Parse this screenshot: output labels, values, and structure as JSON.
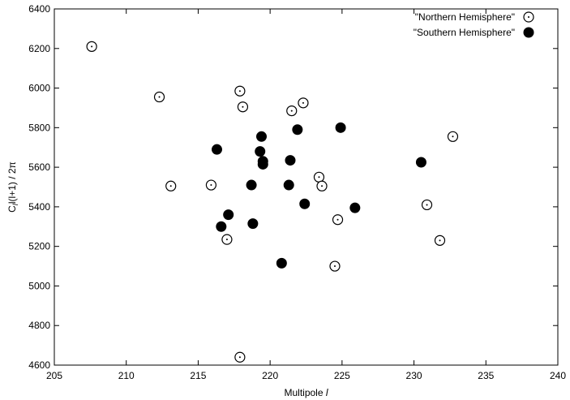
{
  "chart_data": {
    "type": "scatter",
    "xlabel": "Multipole l",
    "xlabel_parts": {
      "text": "Multipole ",
      "var": "l"
    },
    "ylabel": "C_l l(l+1) / 2π",
    "ylabel_parts": {
      "c": "C",
      "sub": "l",
      "tail": "l(l+1) / 2π"
    },
    "xlim": [
      205,
      240
    ],
    "ylim": [
      4600,
      6400
    ],
    "xticks": [
      "205",
      "210",
      "215",
      "220",
      "225",
      "230",
      "235",
      "240"
    ],
    "yticks": [
      "4600",
      "4800",
      "5000",
      "5200",
      "5400",
      "5600",
      "5800",
      "6000",
      "6200",
      "6400"
    ],
    "grid": false,
    "legend_position": "top-right",
    "series": [
      {
        "name": "\"Northern Hemisphere\"",
        "marker": "open-circle-dot",
        "x": [
          207.6,
          212.3,
          213.1,
          215.9,
          217.0,
          217.9,
          217.9,
          218.1,
          221.5,
          222.3,
          223.4,
          223.6,
          224.5,
          224.7,
          230.9,
          231.8,
          232.7
        ],
        "y": [
          6210,
          5955,
          5505,
          5510,
          5235,
          4640,
          5985,
          5905,
          5885,
          5925,
          5550,
          5505,
          5100,
          5335,
          5410,
          5230,
          5755
        ]
      },
      {
        "name": "\"Southern Hemisphere\"",
        "marker": "filled-circle",
        "x": [
          216.3,
          216.6,
          217.1,
          218.7,
          218.8,
          219.3,
          219.4,
          219.5,
          219.5,
          220.8,
          221.3,
          221.4,
          221.9,
          222.4,
          224.9,
          225.9,
          230.5
        ],
        "y": [
          5690,
          5300,
          5360,
          5510,
          5315,
          5680,
          5755,
          5630,
          5615,
          5115,
          5510,
          5635,
          5790,
          5415,
          5800,
          5395,
          5625
        ]
      }
    ]
  }
}
